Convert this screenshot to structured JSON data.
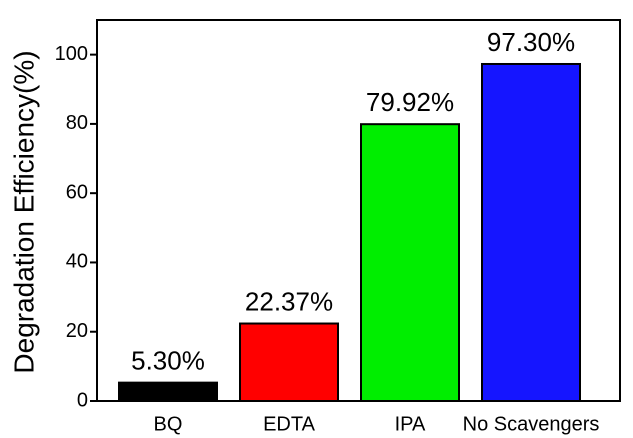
{
  "chart_data": {
    "type": "bar",
    "y_label": "Degradation Efficiency(%)",
    "categories": [
      "BQ",
      "EDTA",
      "IPA",
      "No Scavengers"
    ],
    "values": [
      5.3,
      22.37,
      79.92,
      97.3
    ],
    "value_labels": [
      "5.30%",
      "22.37%",
      "79.92%",
      "97.30%"
    ],
    "colors": [
      "#000000",
      "#ff0000",
      "#00ee00",
      "#1515ff"
    ],
    "ylim": [
      0,
      110
    ],
    "yticks": [
      0,
      20,
      40,
      60,
      80,
      100
    ]
  }
}
